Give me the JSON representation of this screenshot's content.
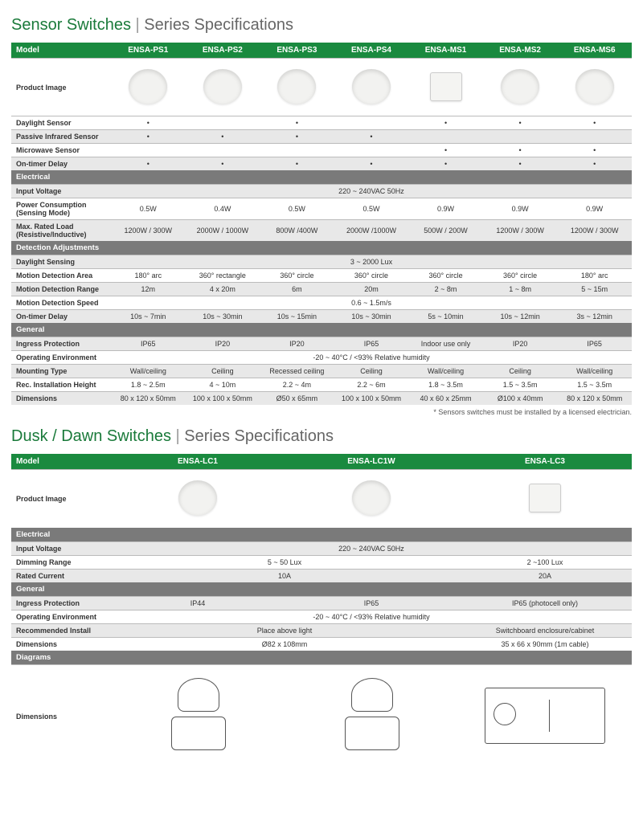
{
  "t1": {
    "a": "Sensor Switches",
    "b": "Series Specifications"
  },
  "t2": {
    "a": "Dusk / Dawn Switches",
    "b": "Series Specifications"
  },
  "h1": {
    "m": "Model",
    "pi": "Product Image",
    "c": [
      "ENSA-PS1",
      "ENSA-PS2",
      "ENSA-PS3",
      "ENSA-PS4",
      "ENSA-MS1",
      "ENSA-MS2",
      "ENSA-MS6"
    ]
  },
  "s1": {
    "r1": {
      "l": "Daylight Sensor",
      "v": [
        "•",
        "",
        "•",
        "",
        "•",
        "•",
        "•"
      ]
    },
    "r2": {
      "l": "Passive Infrared Sensor",
      "v": [
        "•",
        "•",
        "•",
        "•",
        "",
        "",
        ""
      ]
    },
    "r3": {
      "l": "Microwave Sensor",
      "v": [
        "",
        "",
        "",
        "",
        "•",
        "•",
        "•"
      ]
    },
    "r4": {
      "l": "On-timer Delay",
      "v": [
        "•",
        "•",
        "•",
        "•",
        "•",
        "•",
        "•"
      ]
    }
  },
  "sec": {
    "el": "Electrical",
    "da": "Detection Adjustments",
    "ge": "General",
    "di": "Diagrams"
  },
  "e1": {
    "r1": {
      "l": "Input Voltage",
      "span": "220 ~ 240VAC 50Hz"
    },
    "r2": {
      "l": "Power Consumption (Sensing Mode)",
      "v": [
        "0.5W",
        "0.4W",
        "0.5W",
        "0.5W",
        "0.9W",
        "0.9W",
        "0.9W"
      ]
    },
    "r3": {
      "l": "Max. Rated Load (Resistive/Inductive)",
      "v": [
        "1200W / 300W",
        "2000W / 1000W",
        "800W /400W",
        "2000W /1000W",
        "500W / 200W",
        "1200W / 300W",
        "1200W / 300W"
      ]
    }
  },
  "d1": {
    "r1": {
      "l": "Daylight Sensing",
      "span": "3 ~ 2000 Lux"
    },
    "r2": {
      "l": "Motion Detection Area",
      "v": [
        "180° arc",
        "360° rectangle",
        "360° circle",
        "360° circle",
        "360° circle",
        "360° circle",
        "180° arc"
      ]
    },
    "r3": {
      "l": "Motion Detection Range",
      "v": [
        "12m",
        "4 x 20m",
        "6m",
        "20m",
        "2 ~ 8m",
        "1 ~ 8m",
        "5 ~ 15m"
      ]
    },
    "r4": {
      "l": "Motion Detection Speed",
      "span": "0.6 ~ 1.5m/s"
    },
    "r5": {
      "l": "On-timer Delay",
      "v": [
        "10s ~ 7min",
        "10s ~ 30min",
        "10s ~ 15min",
        "10s ~ 30min",
        "5s ~ 10min",
        "10s ~ 12min",
        "3s ~ 12min"
      ]
    }
  },
  "g1": {
    "r1": {
      "l": "Ingress Protection",
      "v": [
        "IP65",
        "IP20",
        "IP20",
        "IP65",
        "Indoor use only",
        "IP20",
        "IP65"
      ]
    },
    "r2": {
      "l": "Operating Environment",
      "span": "-20 ~ 40°C / <93% Relative humidity"
    },
    "r3": {
      "l": "Mounting Type",
      "v": [
        "Wall/ceiling",
        "Ceiling",
        "Recessed ceiling",
        "Ceiling",
        "Wall/ceiling",
        "Ceiling",
        "Wall/ceiling"
      ]
    },
    "r4": {
      "l": "Rec. Installation Height",
      "v": [
        "1.8 ~ 2.5m",
        "4 ~ 10m",
        "2.2 ~ 4m",
        "2.2 ~ 6m",
        "1.8 ~ 3.5m",
        "1.5 ~ 3.5m",
        "1.5 ~ 3.5m"
      ]
    },
    "r5": {
      "l": "Dimensions",
      "v": [
        "80 x 120 x 50mm",
        "100 x 100 x 50mm",
        "Ø50 x 65mm",
        "100 x 100 x 50mm",
        "40 x 60 x 25mm",
        "Ø100 x 40mm",
        "80 x 120 x 50mm"
      ]
    }
  },
  "note": "* Sensors switches must be installed by a licensed electrician.",
  "h2": {
    "c": [
      "ENSA-LC1",
      "ENSA-LC1W",
      "ENSA-LC3"
    ]
  },
  "e2": {
    "r1": {
      "l": "Input Voltage",
      "span": "220 ~ 240VAC 50Hz"
    },
    "r2": {
      "l": "Dimming Range",
      "spans": [
        {
          "t": "5 ~ 50 Lux",
          "c": 2
        },
        {
          "t": "2 ~100 Lux",
          "c": 1
        }
      ]
    },
    "r3": {
      "l": "Rated Current",
      "spans": [
        {
          "t": "10A",
          "c": 2
        },
        {
          "t": "20A",
          "c": 1
        }
      ]
    }
  },
  "g2": {
    "r1": {
      "l": "Ingress Protection",
      "v": [
        "IP44",
        "IP65",
        "IP65 (photocell only)"
      ]
    },
    "r2": {
      "l": "Operating Environment",
      "span": "-20 ~ 40°C / <93% Relative humidity"
    },
    "r3": {
      "l": "Recommended Install",
      "spans": [
        {
          "t": "Place above light",
          "c": 2
        },
        {
          "t": "Switchboard enclosure/cabinet",
          "c": 1
        }
      ]
    },
    "r4": {
      "l": "Dimensions",
      "spans": [
        {
          "t": "Ø82 x 108mm",
          "c": 2
        },
        {
          "t": "35 x 66 x 90mm (1m cable)",
          "c": 1
        }
      ]
    }
  },
  "dim": "Dimensions"
}
